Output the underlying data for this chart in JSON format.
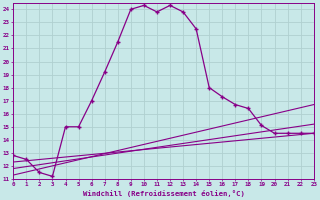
{
  "xlabel": "Windchill (Refroidissement éolien,°C)",
  "background_color": "#c8e8e8",
  "grid_color": "#aacccc",
  "line_color": "#880088",
  "xlim": [
    0,
    23
  ],
  "ylim": [
    11,
    24.5
  ],
  "yticks": [
    11,
    12,
    13,
    14,
    15,
    16,
    17,
    18,
    19,
    20,
    21,
    22,
    23,
    24
  ],
  "xticks": [
    0,
    1,
    2,
    3,
    4,
    5,
    6,
    7,
    8,
    9,
    10,
    11,
    12,
    13,
    14,
    15,
    16,
    17,
    18,
    19,
    20,
    21,
    22,
    23
  ],
  "main_line_x": [
    0,
    1,
    2,
    3,
    4,
    5,
    6,
    7,
    8,
    9,
    10,
    11,
    12,
    13,
    14,
    15,
    16,
    17,
    18,
    19,
    20,
    21,
    22,
    23
  ],
  "main_line_y": [
    12.8,
    12.5,
    11.5,
    11.2,
    15.0,
    15.0,
    17.0,
    19.2,
    21.5,
    24.0,
    24.3,
    23.8,
    24.3,
    23.8,
    22.5,
    18.0,
    17.3,
    16.7,
    16.4,
    15.1,
    14.5,
    14.5,
    14.5,
    14.5
  ],
  "line2_x": [
    0,
    23
  ],
  "line2_y": [
    11.3,
    16.7
  ],
  "line3_x": [
    0,
    23
  ],
  "line3_y": [
    11.8,
    15.2
  ],
  "line4_x": [
    0,
    23
  ],
  "line4_y": [
    12.3,
    14.5
  ]
}
